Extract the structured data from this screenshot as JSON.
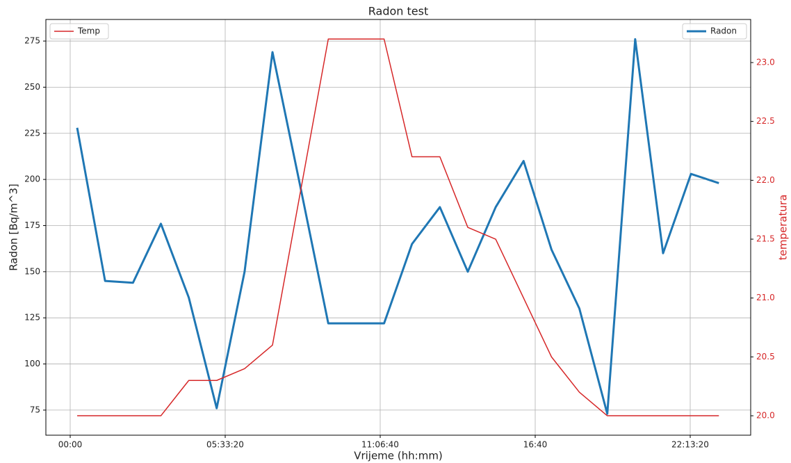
{
  "chart_data": {
    "type": "line",
    "title": "Radon test",
    "x_label": "Vrijeme (hh:mm)",
    "y_label": "Radon [Bq/m^3]",
    "y2_label": "temperatura",
    "y2_color": "#d62728",
    "x": [
      900,
      4500,
      8100,
      11700,
      15300,
      18900,
      22500,
      26100,
      29700,
      33300,
      36900,
      40500,
      44100,
      47700,
      51300,
      54900,
      58500,
      62100,
      65700,
      69300,
      72900,
      76500,
      80100,
      83700
    ],
    "series": [
      {
        "name": "Radon",
        "color": "#1f77b4",
        "width": 3,
        "legend": "upper right",
        "values": [
          228,
          145,
          144,
          176,
          136,
          76,
          150,
          269,
          196,
          122,
          122,
          122,
          165,
          185,
          150,
          185,
          210,
          162,
          130,
          73,
          276,
          160,
          203,
          198
        ]
      },
      {
        "name": "Temp",
        "color": "#d62728",
        "width": 1.5,
        "axis": "y2",
        "legend": "upper left",
        "values": [
          20.0,
          20.0,
          20.0,
          20.0,
          20.3,
          20.3,
          20.4,
          20.6,
          21.9,
          23.2,
          23.2,
          23.2,
          22.2,
          22.2,
          21.6,
          21.5,
          21.0,
          20.5,
          20.2,
          20.0,
          20.0,
          20.0,
          20.0,
          20.0
        ]
      }
    ],
    "xlim": [
      -3139,
      87803
    ],
    "xticks": [
      {
        "value": 0,
        "label": "00:00"
      },
      {
        "value": 20000,
        "label": "05:33:20"
      },
      {
        "value": 40000,
        "label": "11:06:40"
      },
      {
        "value": 60000,
        "label": "16:40"
      },
      {
        "value": 80000,
        "label": "22:13:20"
      }
    ],
    "ylim": [
      61.4,
      286.7
    ],
    "yticks": [
      75,
      100,
      125,
      150,
      175,
      200,
      225,
      250,
      275
    ],
    "y2lim": [
      19.835,
      23.366
    ],
    "y2ticks": [
      {
        "value": 20,
        "label": "20.0"
      },
      {
        "value": 20.5,
        "label": "20.5"
      },
      {
        "value": 21,
        "label": "21.0"
      },
      {
        "value": 21.5,
        "label": "21.5"
      },
      {
        "value": 22,
        "label": "22.0"
      },
      {
        "value": 22.5,
        "label": "22.5"
      },
      {
        "value": 23,
        "label": "23.0"
      }
    ],
    "grid": true
  }
}
